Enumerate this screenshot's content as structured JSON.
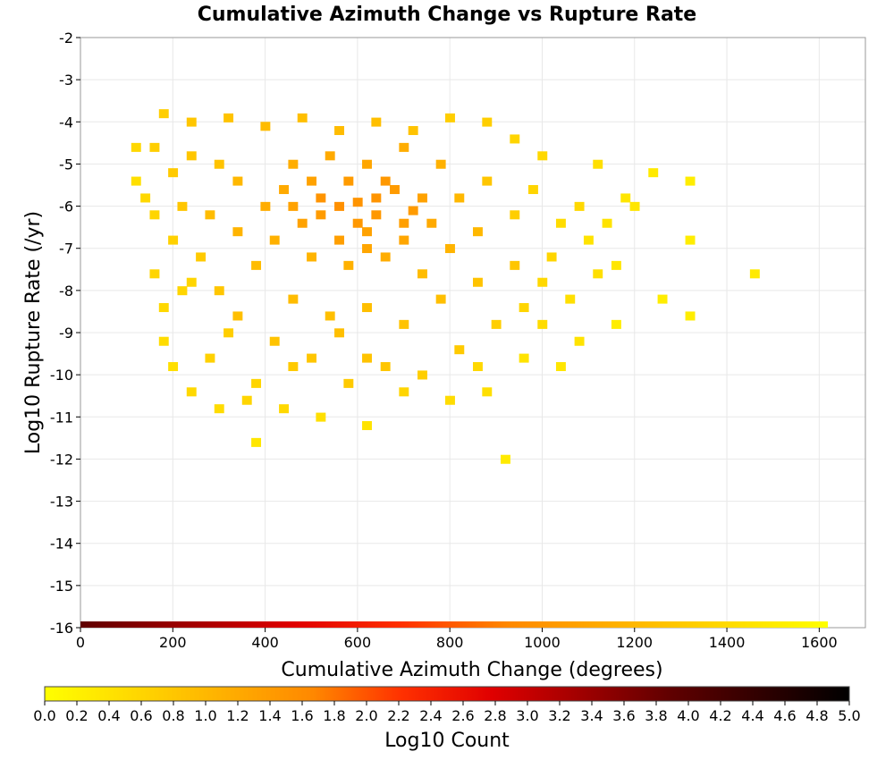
{
  "chart_data": {
    "type": "heatmap",
    "title": "Cumulative Azimuth Change vs Rupture Rate",
    "xlabel": "Cumulative Azimuth Change (degrees)",
    "ylabel": "Log10 Rupture Rate (/yr)",
    "xlim": [
      0,
      1700
    ],
    "ylim": [
      -16,
      -2
    ],
    "x_ticks": [
      "0",
      "200",
      "400",
      "600",
      "800",
      "1000",
      "1200",
      "1400",
      "1600"
    ],
    "y_ticks": [
      "-2",
      "-3",
      "-4",
      "-5",
      "-6",
      "-7",
      "-8",
      "-9",
      "-10",
      "-11",
      "-12",
      "-13",
      "-14",
      "-15",
      "-16"
    ],
    "grid": true,
    "bin_width_x": 20,
    "bin_height_y": 0.2,
    "cells": [
      [
        520,
        -5.8,
        1.5
      ],
      [
        560,
        -6.0,
        1.55
      ],
      [
        600,
        -5.9,
        1.5
      ],
      [
        640,
        -6.2,
        1.45
      ],
      [
        680,
        -5.6,
        1.4
      ],
      [
        720,
        -6.1,
        1.4
      ],
      [
        480,
        -6.4,
        1.3
      ],
      [
        560,
        -6.8,
        1.35
      ],
      [
        620,
        -6.6,
        1.3
      ],
      [
        700,
        -6.8,
        1.25
      ],
      [
        440,
        -5.6,
        1.2
      ],
      [
        760,
        -6.4,
        1.2
      ],
      [
        400,
        -6.0,
        1.15
      ],
      [
        660,
        -7.2,
        1.15
      ],
      [
        580,
        -7.4,
        1.1
      ],
      [
        500,
        -7.2,
        1.05
      ],
      [
        340,
        -5.4,
        1.0
      ],
      [
        820,
        -5.8,
        1.0
      ],
      [
        380,
        -7.4,
        0.95
      ],
      [
        740,
        -7.6,
        0.95
      ],
      [
        300,
        -5.0,
        0.85
      ],
      [
        240,
        -4.8,
        0.8
      ],
      [
        200,
        -5.2,
        0.75
      ],
      [
        160,
        -4.6,
        0.7
      ],
      [
        120,
        -4.6,
        0.55
      ],
      [
        120,
        -5.4,
        0.45
      ],
      [
        880,
        -5.4,
        0.8
      ],
      [
        940,
        -6.2,
        0.7
      ],
      [
        980,
        -5.6,
        0.6
      ],
      [
        1040,
        -6.4,
        0.5
      ],
      [
        1100,
        -6.8,
        0.4
      ],
      [
        1160,
        -7.4,
        0.35
      ],
      [
        1200,
        -6.0,
        0.35
      ],
      [
        1240,
        -5.2,
        0.3
      ],
      [
        1320,
        -5.4,
        0.25
      ],
      [
        1320,
        -6.8,
        0.25
      ],
      [
        1320,
        -8.6,
        0.25
      ],
      [
        1460,
        -7.6,
        0.3
      ],
      [
        1260,
        -8.2,
        0.25
      ],
      [
        1160,
        -8.8,
        0.25
      ],
      [
        340,
        -8.6,
        0.9
      ],
      [
        420,
        -9.2,
        0.85
      ],
      [
        500,
        -9.6,
        0.8
      ],
      [
        580,
        -10.2,
        0.75
      ],
      [
        660,
        -9.8,
        0.8
      ],
      [
        740,
        -10.0,
        0.7
      ],
      [
        820,
        -9.4,
        0.75
      ],
      [
        900,
        -8.8,
        0.7
      ],
      [
        280,
        -9.6,
        0.65
      ],
      [
        240,
        -10.4,
        0.55
      ],
      [
        300,
        -10.8,
        0.5
      ],
      [
        360,
        -10.6,
        0.6
      ],
      [
        440,
        -10.8,
        0.55
      ],
      [
        520,
        -11.0,
        0.45
      ],
      [
        620,
        -11.2,
        0.4
      ],
      [
        880,
        -10.4,
        0.45
      ],
      [
        960,
        -9.6,
        0.4
      ],
      [
        1040,
        -9.8,
        0.35
      ],
      [
        380,
        -11.6,
        0.35
      ],
      [
        920,
        -12.0,
        0.3
      ],
      [
        200,
        -9.8,
        0.45
      ],
      [
        180,
        -9.2,
        0.5
      ],
      [
        180,
        -8.4,
        0.55
      ],
      [
        160,
        -7.6,
        0.6
      ],
      [
        220,
        -8.0,
        0.6
      ],
      [
        260,
        -7.2,
        0.75
      ],
      [
        300,
        -8.0,
        0.8
      ],
      [
        460,
        -8.2,
        0.95
      ],
      [
        540,
        -8.6,
        0.9
      ],
      [
        620,
        -8.4,
        0.9
      ],
      [
        700,
        -8.8,
        0.85
      ],
      [
        780,
        -8.2,
        0.9
      ],
      [
        860,
        -7.8,
        0.85
      ],
      [
        940,
        -7.4,
        0.8
      ],
      [
        1000,
        -7.8,
        0.55
      ],
      [
        1060,
        -8.2,
        0.45
      ],
      [
        1000,
        -8.8,
        0.5
      ],
      [
        1080,
        -9.2,
        0.4
      ],
      [
        1120,
        -7.6,
        0.45
      ],
      [
        1080,
        -6.0,
        0.55
      ],
      [
        1120,
        -5.0,
        0.45
      ],
      [
        1180,
        -5.8,
        0.35
      ],
      [
        1000,
        -4.8,
        0.55
      ],
      [
        940,
        -4.4,
        0.6
      ],
      [
        880,
        -4.0,
        0.7
      ],
      [
        800,
        -3.9,
        0.7
      ],
      [
        720,
        -4.2,
        0.85
      ],
      [
        640,
        -4.0,
        0.9
      ],
      [
        560,
        -4.2,
        0.95
      ],
      [
        480,
        -3.9,
        0.9
      ],
      [
        400,
        -4.1,
        0.95
      ],
      [
        320,
        -3.9,
        0.85
      ],
      [
        240,
        -4.0,
        0.8
      ],
      [
        180,
        -3.8,
        0.7
      ],
      [
        460,
        -5.0,
        1.15
      ],
      [
        540,
        -4.8,
        1.2
      ],
      [
        620,
        -5.0,
        1.25
      ],
      [
        700,
        -4.6,
        1.15
      ],
      [
        780,
        -5.0,
        1.1
      ],
      [
        860,
        -6.6,
        1.0
      ],
      [
        800,
        -7.0,
        1.05
      ],
      [
        420,
        -6.8,
        1.1
      ],
      [
        340,
        -6.6,
        1.05
      ],
      [
        280,
        -6.2,
        0.95
      ],
      [
        220,
        -6.0,
        0.8
      ],
      [
        160,
        -6.2,
        0.6
      ],
      [
        140,
        -5.8,
        0.55
      ],
      [
        200,
        -6.8,
        0.65
      ],
      [
        240,
        -7.8,
        0.6
      ],
      [
        320,
        -9.0,
        0.7
      ],
      [
        620,
        -9.6,
        0.85
      ],
      [
        560,
        -9.0,
        0.9
      ],
      [
        460,
        -9.8,
        0.75
      ],
      [
        380,
        -10.2,
        0.6
      ],
      [
        700,
        -10.4,
        0.6
      ],
      [
        800,
        -10.6,
        0.5
      ],
      [
        860,
        -9.8,
        0.55
      ],
      [
        960,
        -8.4,
        0.6
      ],
      [
        1020,
        -7.2,
        0.6
      ],
      [
        1140,
        -6.4,
        0.4
      ],
      [
        660,
        -5.4,
        1.45
      ],
      [
        600,
        -6.4,
        1.45
      ],
      [
        520,
        -6.2,
        1.4
      ],
      [
        580,
        -5.4,
        1.4
      ],
      [
        700,
        -6.4,
        1.35
      ],
      [
        640,
        -5.8,
        1.5
      ],
      [
        460,
        -6.0,
        1.3
      ],
      [
        740,
        -5.8,
        1.3
      ],
      [
        500,
        -5.4,
        1.3
      ],
      [
        620,
        -7.0,
        1.25
      ]
    ],
    "colorbar": {
      "label": "Log10 Count",
      "min": 0,
      "max": 5,
      "ticks": [
        "0.0",
        "0.2",
        "0.4",
        "0.6",
        "0.8",
        "1.0",
        "1.2",
        "1.4",
        "1.6",
        "1.8",
        "2.0",
        "2.2",
        "2.4",
        "2.6",
        "2.8",
        "3.0",
        "3.2",
        "3.4",
        "3.6",
        "3.8",
        "4.0",
        "4.2",
        "4.4",
        "4.6",
        "4.8",
        "5.0"
      ],
      "colors": [
        "#ffff00",
        "#ffd800",
        "#ffb000",
        "#ff8800",
        "#ff3000",
        "#e00000",
        "#a00000",
        "#600000",
        "#300000",
        "#000000"
      ]
    }
  }
}
